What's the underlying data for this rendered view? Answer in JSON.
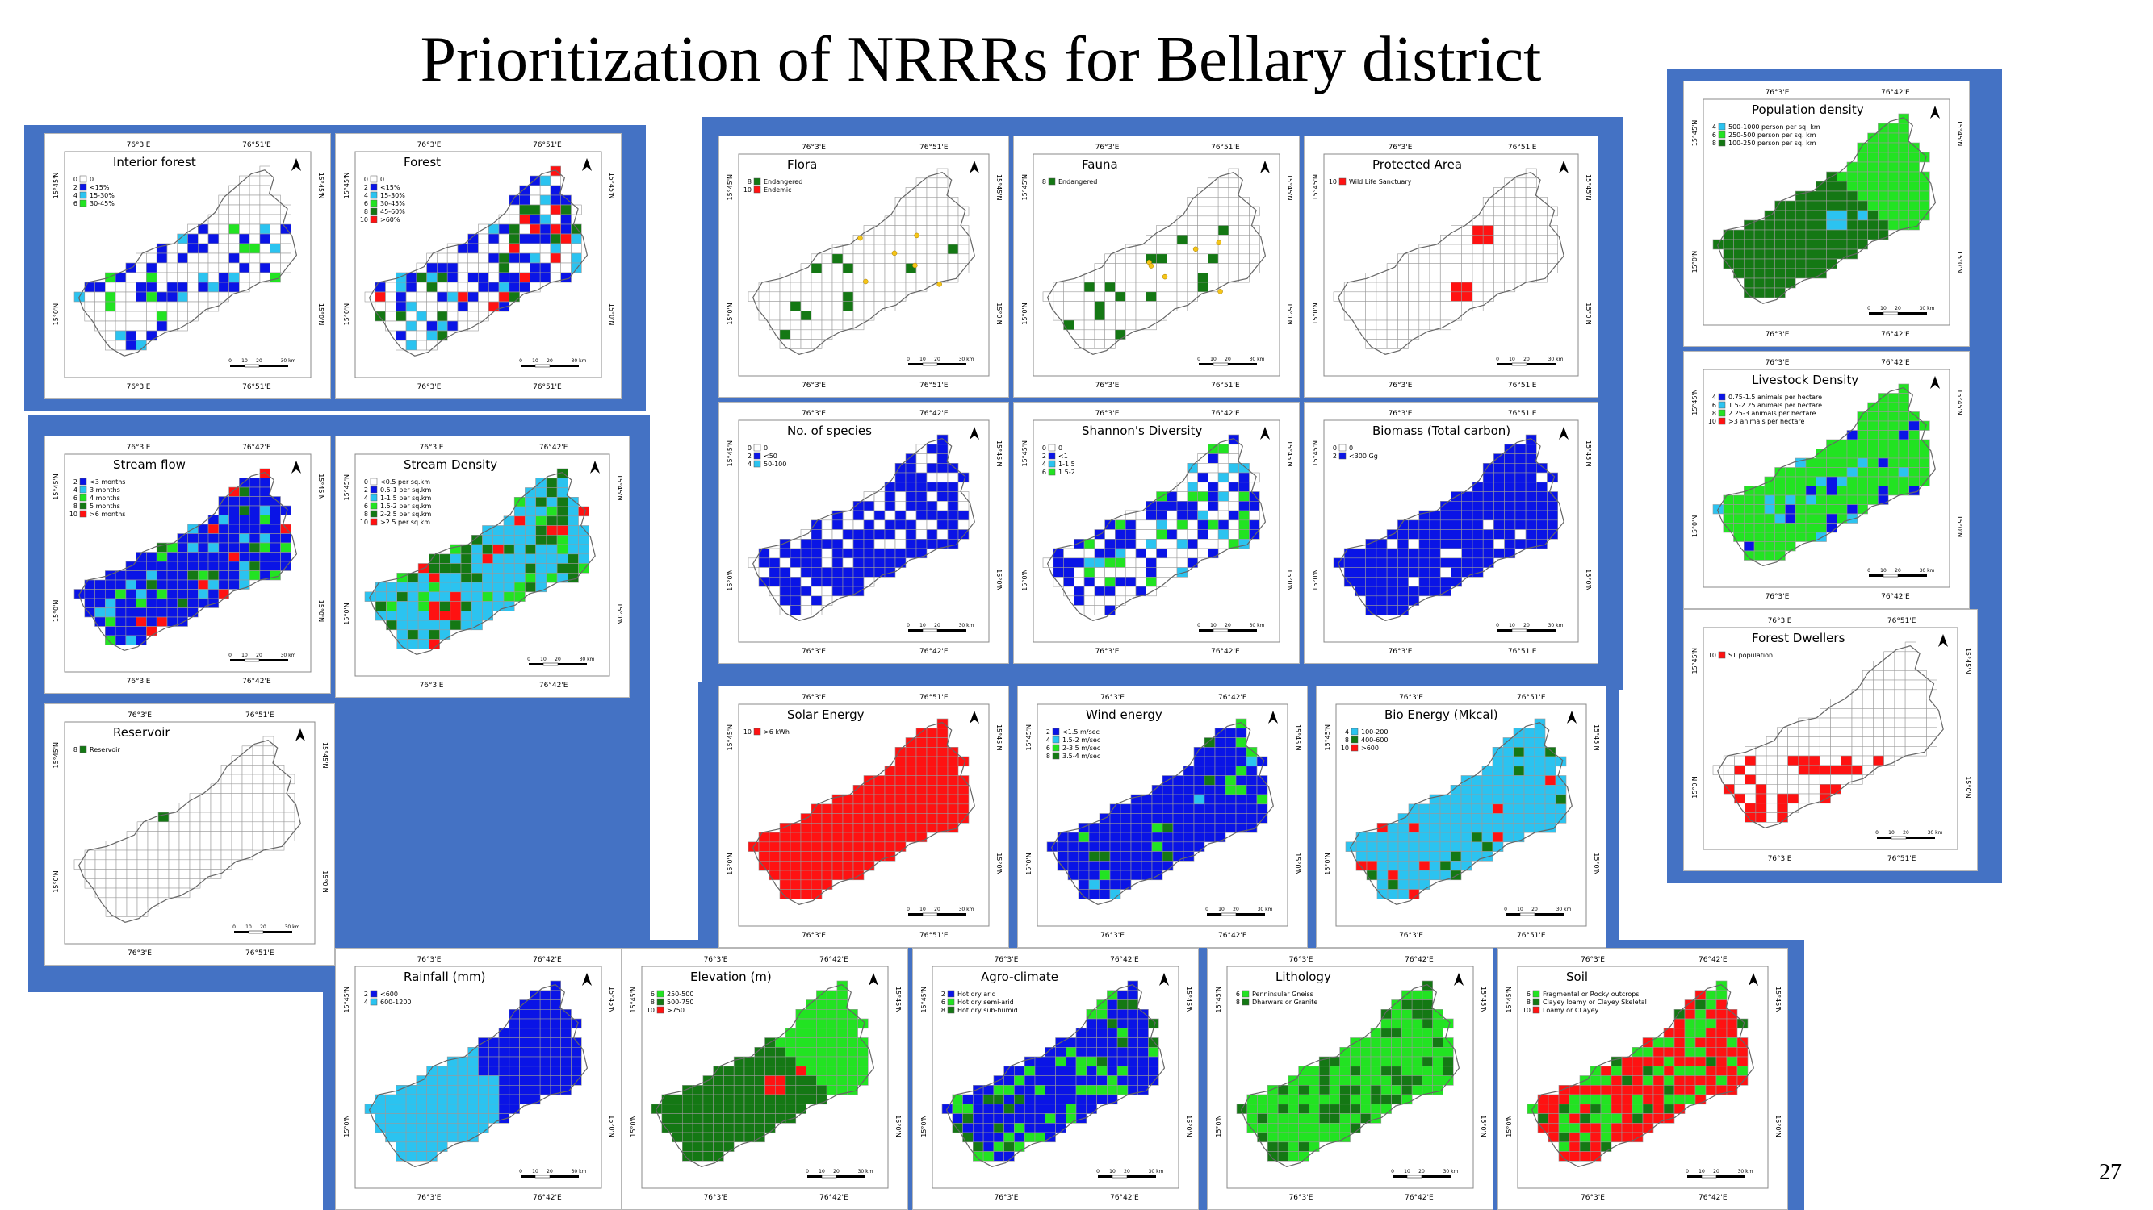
{
  "slide": {
    "title": "Prioritization of NRRRs for Bellary district",
    "page_number": "27"
  },
  "colors": {
    "group_fill": "#4472c4",
    "white": "#ffffff",
    "blue": "#0a14e6",
    "light_blue": "#2bc3f0",
    "green": "#22e322",
    "dark_green": "#147814",
    "red": "#ff1212",
    "yellow": "#f5c518",
    "grid": "#9a9a9a",
    "outline": "#666666"
  },
  "icons": {
    "north_arrow": "north-arrow-icon",
    "scale_bar": "scale-bar-icon"
  },
  "scale_labels": [
    "0",
    "10",
    "20",
    "30 km"
  ],
  "maps": [
    {
      "id": "interior-forest",
      "title": "Interior forest",
      "lat_labels": [
        "15°45'N",
        "15°0'N"
      ],
      "lon_labels": [
        "76°3'E",
        "76°51'E"
      ],
      "legend": [
        {
          "score": "0",
          "label": "0",
          "color": "#ffffff"
        },
        {
          "score": "2",
          "label": "<15%",
          "color": "#0a14e6"
        },
        {
          "score": "4",
          "label": "15-30%",
          "color": "#2bc3f0"
        },
        {
          "score": "6",
          "label": "30-45%",
          "color": "#22e322"
        }
      ],
      "fill": "scatter",
      "base": "#ffffff",
      "accents": [
        "#0a14e6",
        "#0a14e6",
        "#0a14e6",
        "#2bc3f0",
        "#22e322"
      ],
      "density": 0.35
    },
    {
      "id": "forest",
      "title": "Forest",
      "lat_labels": [
        "15°45'N",
        "15°0'N"
      ],
      "lon_labels": [
        "76°3'E",
        "76°51'E"
      ],
      "legend": [
        {
          "score": "0",
          "label": "0",
          "color": "#ffffff"
        },
        {
          "score": "2",
          "label": "<15%",
          "color": "#0a14e6"
        },
        {
          "score": "4",
          "label": "15-30%",
          "color": "#2bc3f0"
        },
        {
          "score": "6",
          "label": "30-45%",
          "color": "#22e322"
        },
        {
          "score": "8",
          "label": "45-60%",
          "color": "#147814"
        },
        {
          "score": "10",
          "label": ">60%",
          "color": "#ff1212"
        }
      ],
      "fill": "scatter",
      "base": "#ffffff",
      "accents": [
        "#0a14e6",
        "#0a14e6",
        "#0a14e6",
        "#0a14e6",
        "#2bc3f0",
        "#147814",
        "#ff1212"
      ],
      "density": 0.6
    },
    {
      "id": "stream-flow",
      "title": "Stream flow",
      "lat_labels": [
        "15°45'N",
        "15°0'N"
      ],
      "lon_labels": [
        "76°3'E",
        "76°42'E"
      ],
      "legend": [
        {
          "score": "2",
          "label": "<3 months",
          "color": "#0a14e6"
        },
        {
          "score": "4",
          "label": "3 months",
          "color": "#2bc3f0"
        },
        {
          "score": "6",
          "label": "4 months",
          "color": "#22e322"
        },
        {
          "score": "8",
          "label": "5 months",
          "color": "#147814"
        },
        {
          "score": "10",
          "label": ">6 months",
          "color": "#ff1212"
        }
      ],
      "fill": "full",
      "base": "#0a14e6",
      "accents": [
        "#22e322",
        "#147814",
        "#ff1212",
        "#2bc3f0"
      ],
      "density": 0.25
    },
    {
      "id": "stream-density",
      "title": "Stream Density",
      "lat_labels": [
        "15°45'N",
        "15°0'N"
      ],
      "lon_labels": [
        "76°3'E",
        "76°42'E"
      ],
      "legend": [
        {
          "score": "0",
          "label": "<0.5 per sq.km",
          "color": "#ffffff"
        },
        {
          "score": "2",
          "label": "0.5-1 per sq.km",
          "color": "#0a14e6"
        },
        {
          "score": "4",
          "label": "1-1.5 per sq.km",
          "color": "#2bc3f0"
        },
        {
          "score": "6",
          "label": "1.5-2 per sq.km",
          "color": "#22e322"
        },
        {
          "score": "8",
          "label": "2-2.5 per sq.km",
          "color": "#147814"
        },
        {
          "score": "10",
          "label": ">2.5 per sq.km",
          "color": "#ff1212"
        }
      ],
      "fill": "full",
      "base": "#2bc3f0",
      "accents": [
        "#147814",
        "#22e322",
        "#147814",
        "#ff1212"
      ],
      "density": 0.45
    },
    {
      "id": "reservoir",
      "title": "Reservoir",
      "lat_labels": [
        "15°45'N",
        "15°0'N"
      ],
      "lon_labels": [
        "76°3'E",
        "76°51'E"
      ],
      "legend": [
        {
          "score": "8",
          "label": "Reservoir",
          "color": "#147814"
        }
      ],
      "fill": "band",
      "base": "#ffffff",
      "accents": [
        "#147814"
      ],
      "density": 0.0
    },
    {
      "id": "flora",
      "title": "Flora",
      "lat_labels": [
        "15°45'N",
        "15°0'N"
      ],
      "lon_labels": [
        "76°3'E",
        "76°51'E"
      ],
      "legend": [
        {
          "score": "8",
          "label": "Endangered",
          "color": "#147814"
        },
        {
          "score": "10",
          "label": "Endemic",
          "color": "#ff1212"
        }
      ],
      "fill": "scatter",
      "base": "#ffffff",
      "accents": [
        "#147814"
      ],
      "density": 0.08,
      "dots": true
    },
    {
      "id": "fauna",
      "title": "Fauna",
      "lat_labels": [
        "15°45'N",
        "15°0'N"
      ],
      "lon_labels": [
        "76°3'E",
        "76°51'E"
      ],
      "legend": [
        {
          "score": "8",
          "label": "Endangered",
          "color": "#147814"
        }
      ],
      "fill": "scatter",
      "base": "#ffffff",
      "accents": [
        "#147814"
      ],
      "density": 0.08,
      "dots": true
    },
    {
      "id": "protected-area",
      "title": "Protected Area",
      "lat_labels": [
        "15°45'N",
        "15°0'N"
      ],
      "lon_labels": [
        "76°3'E",
        "76°51'E"
      ],
      "legend": [
        {
          "score": "10",
          "label": "Wild Life Sanctuary",
          "color": "#ff1212"
        }
      ],
      "fill": "pair",
      "base": "#ffffff",
      "accents": [
        "#ff1212"
      ],
      "density": 0.0
    },
    {
      "id": "no-of-species",
      "title": "No. of species",
      "lat_labels": [
        "15°45'N",
        "15°0'N"
      ],
      "lon_labels": [
        "76°3'E",
        "76°42'E"
      ],
      "legend": [
        {
          "score": "0",
          "label": "0",
          "color": "#ffffff"
        },
        {
          "score": "2",
          "label": "<50",
          "color": "#0a14e6"
        },
        {
          "score": "4",
          "label": "50-100",
          "color": "#2bc3f0"
        }
      ],
      "fill": "scatter",
      "base": "#ffffff",
      "accents": [
        "#0a14e6",
        "#0a14e6",
        "#0a14e6"
      ],
      "density": 0.7
    },
    {
      "id": "shannons-diversity",
      "title": "Shannon's Diversity",
      "lat_labels": [
        "15°45'N",
        "15°0'N"
      ],
      "lon_labels": [
        "76°3'E",
        "76°42'E"
      ],
      "legend": [
        {
          "score": "0",
          "label": "0",
          "color": "#ffffff"
        },
        {
          "score": "2",
          "label": "<1",
          "color": "#0a14e6"
        },
        {
          "score": "4",
          "label": "1-1.5",
          "color": "#2bc3f0"
        },
        {
          "score": "6",
          "label": "1.5-2",
          "color": "#22e322"
        }
      ],
      "fill": "scatter",
      "base": "#ffffff",
      "accents": [
        "#0a14e6",
        "#0a14e6",
        "#0a14e6",
        "#2bc3f0",
        "#22e322"
      ],
      "density": 0.6
    },
    {
      "id": "biomass",
      "title": "Biomass (Total carbon)",
      "lat_labels": [
        "15°45'N",
        "15°0'N"
      ],
      "lon_labels": [
        "76°3'E",
        "76°51'E"
      ],
      "legend": [
        {
          "score": "0",
          "label": "0",
          "color": "#ffffff"
        },
        {
          "score": "2",
          "label": "<300 Gg",
          "color": "#0a14e6"
        }
      ],
      "fill": "full",
      "base": "#0a14e6",
      "accents": [
        "#ffffff"
      ],
      "density": 0.04
    },
    {
      "id": "population-density",
      "title": "Population density",
      "lat_labels": [
        "15°45'N",
        "15°0'N"
      ],
      "lon_labels": [
        "76°3'E",
        "76°42'E"
      ],
      "legend": [
        {
          "score": "4",
          "label": "500-1000 person per sq. km",
          "color": "#2bc3f0"
        },
        {
          "score": "6",
          "label": "250-500 person per sq. km",
          "color": "#22e322"
        },
        {
          "score": "8",
          "label": "100-250 person per sq. km",
          "color": "#147814"
        }
      ],
      "fill": "regions",
      "base": "#147814",
      "accents": [
        "#22e322",
        "#2bc3f0"
      ],
      "density": 0.0
    },
    {
      "id": "livestock-density",
      "title": "Livestock Density",
      "lat_labels": [
        "15°45'N",
        "15°0'N"
      ],
      "lon_labels": [
        "76°3'E",
        "76°42'E"
      ],
      "legend": [
        {
          "score": "4",
          "label": "0.75-1.5 animals per hectare",
          "color": "#0a14e6"
        },
        {
          "score": "6",
          "label": "1.5-2.25 animals per hectare",
          "color": "#2bc3f0"
        },
        {
          "score": "8",
          "label": "2.25-3 animals per hectare",
          "color": "#22e322"
        },
        {
          "score": "10",
          "label": ">3 animals per hectare",
          "color": "#ff1212"
        }
      ],
      "fill": "full",
      "base": "#22e322",
      "accents": [
        "#0a14e6",
        "#2bc3f0"
      ],
      "density": 0.15
    },
    {
      "id": "forest-dwellers",
      "title": "Forest Dwellers",
      "lat_labels": [
        "15°45'N",
        "15°0'N"
      ],
      "lon_labels": [
        "76°3'E",
        "76°51'E"
      ],
      "legend": [
        {
          "score": "10",
          "label": "ST population",
          "color": "#ff1212"
        }
      ],
      "fill": "bottom",
      "base": "#ffffff",
      "accents": [
        "#ff1212"
      ],
      "density": 0.0
    },
    {
      "id": "solar-energy",
      "title": "Solar Energy",
      "lat_labels": [
        "15°45'N",
        "15°0'N"
      ],
      "lon_labels": [
        "76°3'E",
        "76°51'E"
      ],
      "legend": [
        {
          "score": "10",
          "label": ">6 kWh",
          "color": "#ff1212"
        }
      ],
      "fill": "full",
      "base": "#ff1212",
      "accents": [],
      "density": 0.0
    },
    {
      "id": "wind-energy",
      "title": "Wind energy",
      "lat_labels": [
        "15°45'N",
        "15°0'N"
      ],
      "lon_labels": [
        "76°3'E",
        "76°42'E"
      ],
      "legend": [
        {
          "score": "2",
          "label": "<1.5 m/sec",
          "color": "#0a14e6"
        },
        {
          "score": "4",
          "label": "1.5-2 m/sec",
          "color": "#2bc3f0"
        },
        {
          "score": "6",
          "label": "2-3.5 m/sec",
          "color": "#22e322"
        },
        {
          "score": "8",
          "label": "3.5-4 m/sec",
          "color": "#147814"
        }
      ],
      "fill": "full",
      "base": "#0a14e6",
      "accents": [
        "#22e322",
        "#2bc3f0",
        "#147814"
      ],
      "density": 0.12
    },
    {
      "id": "bio-energy",
      "title": "Bio Energy (Mkcal)",
      "lat_labels": [
        "15°45'N",
        "15°0'N"
      ],
      "lon_labels": [
        "76°3'E",
        "76°51'E"
      ],
      "legend": [
        {
          "score": "4",
          "label": "100-200",
          "color": "#2bc3f0"
        },
        {
          "score": "8",
          "label": "400-600",
          "color": "#147814"
        },
        {
          "score": "10",
          "label": ">600",
          "color": "#ff1212"
        }
      ],
      "fill": "full",
      "base": "#2bc3f0",
      "accents": [
        "#ff1212",
        "#147814"
      ],
      "density": 0.12
    },
    {
      "id": "rainfall",
      "title": "Rainfall (mm)",
      "lat_labels": [
        "15°45'N",
        "15°0'N"
      ],
      "lon_labels": [
        "76°3'E",
        "76°42'E"
      ],
      "legend": [
        {
          "score": "2",
          "label": "<600",
          "color": "#0a14e6"
        },
        {
          "score": "4",
          "label": "600-1200",
          "color": "#2bc3f0"
        }
      ],
      "fill": "split",
      "base": "#2bc3f0",
      "accents": [
        "#0a14e6"
      ],
      "density": 0.0
    },
    {
      "id": "elevation",
      "title": "Elevation (m)",
      "lat_labels": [
        "15°45'N",
        "15°0'N"
      ],
      "lon_labels": [
        "76°3'E",
        "76°42'E"
      ],
      "legend": [
        {
          "score": "6",
          "label": "250-500",
          "color": "#22e322"
        },
        {
          "score": "8",
          "label": "500-750",
          "color": "#147814"
        },
        {
          "score": "10",
          "label": ">750",
          "color": "#ff1212"
        }
      ],
      "fill": "regions",
      "base": "#147814",
      "accents": [
        "#22e322",
        "#ff1212"
      ],
      "density": 0.0
    },
    {
      "id": "agro-climate",
      "title": "Agro-climate",
      "lat_labels": [
        "15°45'N",
        "15°0'N"
      ],
      "lon_labels": [
        "76°3'E",
        "76°42'E"
      ],
      "legend": [
        {
          "score": "2",
          "label": "Hot dry arid",
          "color": "#0a14e6"
        },
        {
          "score": "6",
          "label": "Hot dry semi-arid",
          "color": "#22e322"
        },
        {
          "score": "8",
          "label": "Hot dry sub-humid",
          "color": "#147814"
        }
      ],
      "fill": "full",
      "base": "#0a14e6",
      "accents": [
        "#22e322",
        "#147814",
        "#22e322"
      ],
      "density": 0.3
    },
    {
      "id": "lithology",
      "title": "Lithology",
      "lat_labels": [
        "15°45'N",
        "15°0'N"
      ],
      "lon_labels": [
        "76°3'E",
        "76°42'E"
      ],
      "legend": [
        {
          "score": "6",
          "label": "Penninsular Gneiss",
          "color": "#22e322"
        },
        {
          "score": "8",
          "label": "Dharwars or Granite",
          "color": "#147814"
        }
      ],
      "fill": "full",
      "base": "#22e322",
      "accents": [
        "#147814"
      ],
      "density": 0.3
    },
    {
      "id": "soil",
      "title": "Soil",
      "lat_labels": [
        "15°45'N",
        "15°0'N"
      ],
      "lon_labels": [
        "76°3'E",
        "76°42'E"
      ],
      "legend": [
        {
          "score": "6",
          "label": "Fragmental or Rocky outcrops",
          "color": "#22e322"
        },
        {
          "score": "8",
          "label": "Clayey loamy or Clayey Skeletal",
          "color": "#147814"
        },
        {
          "score": "10",
          "label": "Loamy or CLayey",
          "color": "#ff1212"
        }
      ],
      "fill": "full",
      "base": "#ff1212",
      "accents": [
        "#22e322",
        "#147814",
        "#22e322"
      ],
      "density": 0.35
    }
  ]
}
